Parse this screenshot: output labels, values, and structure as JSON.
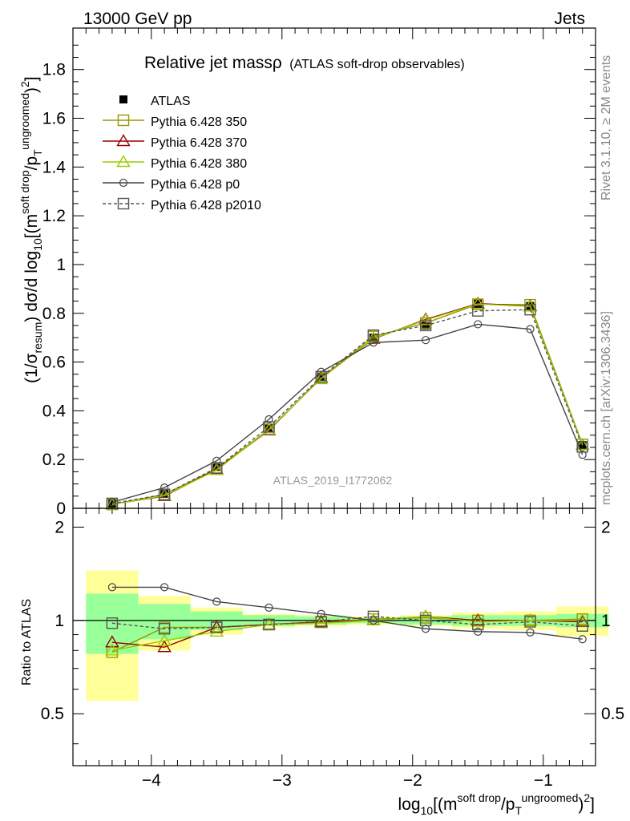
{
  "header": {
    "left": "13000 GeV pp",
    "right": "Jets"
  },
  "side": {
    "top": "Rivet 3.1.10, ≥ 2M events",
    "bottom": "mcplots.cern.ch [arXiv:1306.3436]"
  },
  "chart_data": {
    "type": "line",
    "title_main": "Relative jet massρ",
    "title_sub": "(ATLAS soft-drop observables)",
    "watermark": "ATLAS_2019_I1772062",
    "ylabel": "(1/σresum) dσ/d log10[(m soft drop / pT ungroomed)2]",
    "ratio_ylabel": "Ratio to ATLAS",
    "xlabel": "log10[(m soft drop / pT ungroomed)2]",
    "xlim": [
      -4.6,
      -0.6
    ],
    "ylim": [
      0,
      1.97
    ],
    "ratio_ylim": [
      0.34,
      2.3
    ],
    "x_ticks": [
      -4,
      -3,
      -2,
      -1
    ],
    "x_tick_labels": [
      "−4",
      "−3",
      "−2",
      "−1"
    ],
    "y_ticks": [
      0,
      0.2,
      0.4,
      0.6,
      0.8,
      1,
      1.2,
      1.4,
      1.6,
      1.8
    ],
    "y_tick_labels": [
      "0",
      "0.2",
      "0.4",
      "0.6",
      "0.8",
      "1",
      "1.2",
      "1.4",
      "1.6",
      "1.8"
    ],
    "ratio_ticks": [
      0.5,
      1,
      2
    ],
    "ratio_tick_labels": [
      "0.5",
      "1",
      "2"
    ],
    "x": [
      -4.3,
      -3.9,
      -3.5,
      -3.1,
      -2.7,
      -2.3,
      -1.9,
      -1.5,
      -1.1,
      -0.7
    ],
    "bin_edges": [
      -4.5,
      -4.1,
      -3.7,
      -3.3,
      -2.9,
      -2.5,
      -2.1,
      -1.7,
      -1.3,
      -0.9,
      -0.5
    ],
    "data": {
      "name": "ATLAS",
      "values": [
        0.02,
        0.06,
        0.17,
        0.33,
        0.54,
        0.7,
        0.75,
        0.84,
        0.83,
        0.26
      ],
      "band_inner": [
        0.22,
        0.13,
        0.07,
        0.04,
        0.03,
        0.02,
        0.03,
        0.04,
        0.04,
        0.05
      ],
      "band_outer": [
        0.45,
        0.2,
        0.1,
        0.05,
        0.04,
        0.03,
        0.04,
        0.06,
        0.07,
        0.11
      ]
    },
    "series": [
      {
        "name": "Pythia 6.428 350",
        "color": "#999900",
        "marker": "square",
        "dash": "",
        "values": [
          0.016,
          0.057,
          0.162,
          0.324,
          0.533,
          0.705,
          0.76,
          0.837,
          0.835,
          0.262
        ],
        "ratio": [
          0.79,
          0.95,
          0.95,
          0.97,
          0.99,
          1.01,
          1.02,
          1.0,
          1.0,
          1.01
        ]
      },
      {
        "name": "Pythia 6.428 370",
        "color": "#990000",
        "marker": "triangle",
        "dash": "",
        "values": [
          0.017,
          0.05,
          0.16,
          0.32,
          0.535,
          0.695,
          0.775,
          0.84,
          0.83,
          0.26
        ],
        "ratio": [
          0.85,
          0.82,
          0.95,
          0.97,
          0.99,
          1.0,
          1.03,
          1.0,
          1.0,
          0.99
        ]
      },
      {
        "name": "Pythia 6.428 380",
        "color": "#99cc00",
        "marker": "triangle",
        "dash": "",
        "values": [
          0.016,
          0.052,
          0.157,
          0.323,
          0.532,
          0.697,
          0.772,
          0.838,
          0.828,
          0.26
        ],
        "ratio": [
          0.8,
          0.86,
          0.92,
          0.97,
          0.98,
          1.0,
          1.03,
          0.99,
          1.0,
          1.0
        ]
      },
      {
        "name": "Pythia 6.428 p0",
        "color": "#444444",
        "marker": "circle",
        "dash": "",
        "values": [
          0.025,
          0.085,
          0.195,
          0.365,
          0.56,
          0.68,
          0.69,
          0.755,
          0.735,
          0.22
        ],
        "ratio": [
          1.28,
          1.28,
          1.15,
          1.1,
          1.05,
          1.0,
          0.94,
          0.92,
          0.915,
          0.87
        ]
      },
      {
        "name": "Pythia 6.428 p2010",
        "color": "#555555",
        "marker": "square",
        "dash": "4,3",
        "values": [
          0.02,
          0.057,
          0.166,
          0.334,
          0.54,
          0.71,
          0.75,
          0.81,
          0.815,
          0.252
        ],
        "ratio": [
          0.98,
          0.94,
          0.95,
          0.97,
          0.99,
          1.03,
          1.0,
          0.97,
          0.99,
          0.96
        ]
      }
    ]
  }
}
